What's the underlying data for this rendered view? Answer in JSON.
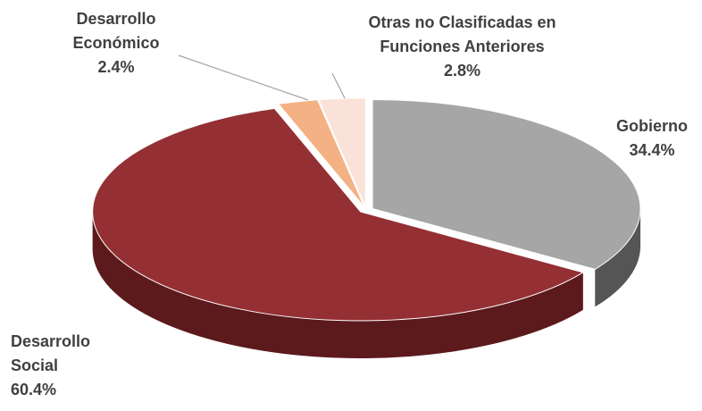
{
  "chart_data": {
    "type": "pie",
    "3d": true,
    "categories": [
      "Gobierno",
      "Desarrollo Social",
      "Desarrollo Económico",
      "Otras no Clasificadas en Funciones Anteriores"
    ],
    "values": [
      34.4,
      60.4,
      2.4,
      2.8
    ],
    "value_labels": [
      "34.4%",
      "60.4%",
      "2.4%",
      "2.8%"
    ],
    "colors": [
      "#a6a6a6",
      "#943034",
      "#f4b183",
      "#fbe2d8"
    ],
    "side_colors": [
      "#555555",
      "#5c1a1d",
      "#b5703f",
      "#cdb0a5"
    ]
  }
}
